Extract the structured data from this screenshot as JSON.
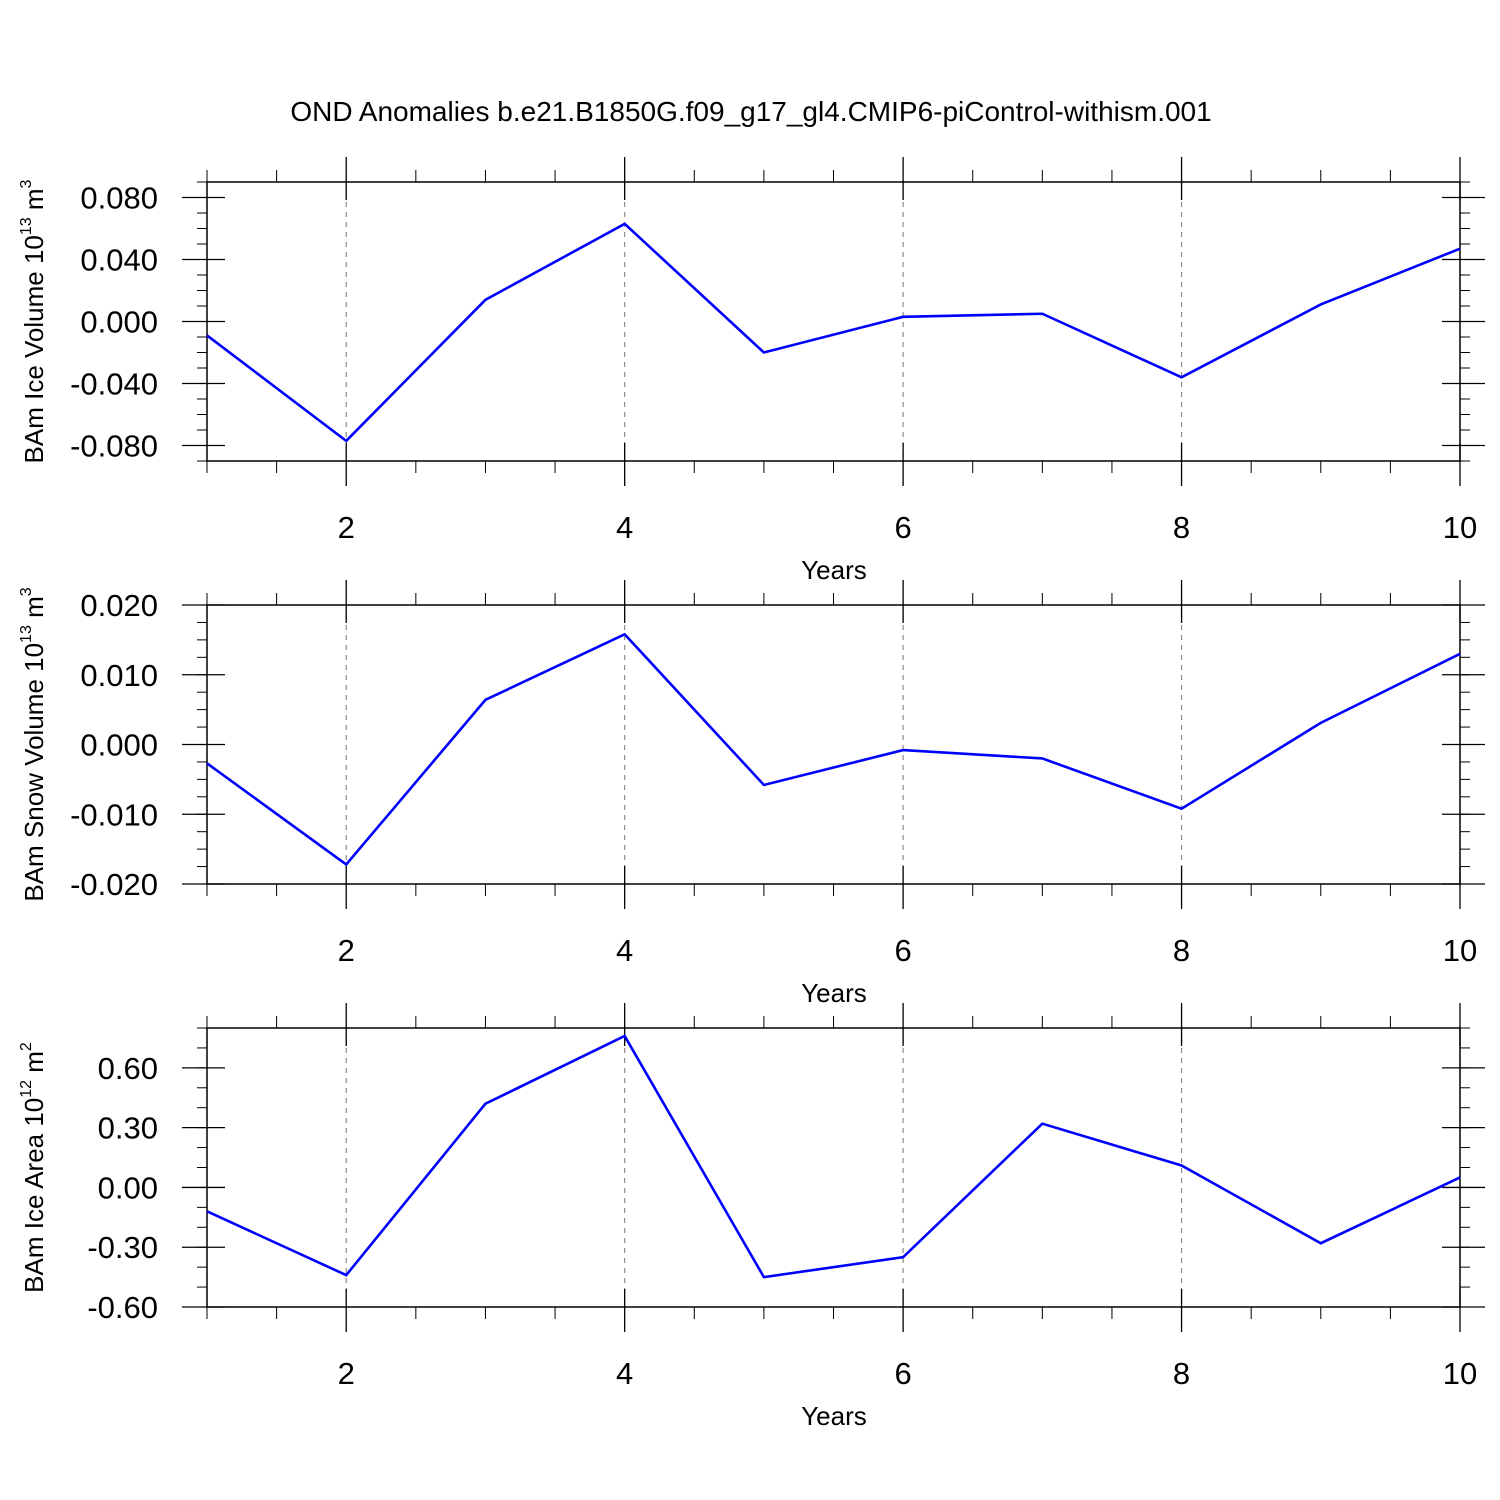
{
  "title": "OND Anomalies b.e21.B1850G.f09_g17_gl4.CMIP6-piControl-withism.001",
  "colors": {
    "line": "#0000ff",
    "axes": "#000000",
    "grid": "#8c8c8c"
  },
  "chart_data": [
    {
      "type": "line",
      "ylabel": {
        "text": "BAm Ice Volume 10",
        "sup": "13",
        "unit": " m",
        "unit_sup": "3"
      },
      "xlabel": "Years",
      "x": [
        1,
        2,
        3,
        4,
        5,
        6,
        7,
        8,
        9,
        10
      ],
      "xlim": [
        1,
        10
      ],
      "xticks": [
        2,
        4,
        6,
        8,
        10
      ],
      "xtick_labels": [
        "2",
        "4",
        "6",
        "8",
        "10"
      ],
      "series": [
        {
          "values": [
            -0.009,
            -0.077,
            0.014,
            0.063,
            -0.02,
            0.003,
            0.005,
            -0.036,
            0.011,
            0.047
          ]
        }
      ],
      "ylim": [
        -0.09,
        0.09
      ],
      "yticks": [
        -0.08,
        -0.04,
        0.0,
        0.04,
        0.08
      ],
      "ytick_labels": [
        "-0.080",
        "-0.040",
        "0.000",
        "0.040",
        "0.080"
      ],
      "yminor_step": 0.01,
      "grid": "vertical dashed at major x ticks"
    },
    {
      "type": "line",
      "ylabel": {
        "text": "BAm Snow Volume 10",
        "sup": "13",
        "unit": " m",
        "unit_sup": "3"
      },
      "xlabel": "Years",
      "x": [
        1,
        2,
        3,
        4,
        5,
        6,
        7,
        8,
        9,
        10
      ],
      "xlim": [
        1,
        10
      ],
      "xticks": [
        2,
        4,
        6,
        8,
        10
      ],
      "xtick_labels": [
        "2",
        "4",
        "6",
        "8",
        "10"
      ],
      "series": [
        {
          "values": [
            -0.0027,
            -0.0172,
            0.0064,
            0.0158,
            -0.0058,
            -0.0008,
            -0.002,
            -0.0092,
            0.0031,
            0.013
          ]
        }
      ],
      "ylim": [
        -0.02,
        0.02
      ],
      "yticks": [
        -0.02,
        -0.01,
        0.0,
        0.01,
        0.02
      ],
      "ytick_labels": [
        "-0.020",
        "-0.010",
        "0.000",
        "0.010",
        "0.020"
      ],
      "yminor_step": 0.0025,
      "grid": "vertical dashed at major x ticks"
    },
    {
      "type": "line",
      "ylabel": {
        "text": "BAm Ice Area 10",
        "sup": "12",
        "unit": " m",
        "unit_sup": "2"
      },
      "xlabel": "Years",
      "x": [
        1,
        2,
        3,
        4,
        5,
        6,
        7,
        8,
        9,
        10
      ],
      "xlim": [
        1,
        10
      ],
      "xticks": [
        2,
        4,
        6,
        8,
        10
      ],
      "xtick_labels": [
        "2",
        "4",
        "6",
        "8",
        "10"
      ],
      "series": [
        {
          "values": [
            -0.12,
            -0.44,
            0.42,
            0.76,
            -0.45,
            -0.35,
            0.32,
            0.11,
            -0.28,
            0.05
          ]
        }
      ],
      "ylim": [
        -0.6,
        0.8
      ],
      "yticks": [
        -0.6,
        -0.3,
        0.0,
        0.3,
        0.6
      ],
      "ytick_labels": [
        "-0.60",
        "-0.30",
        "0.00",
        "0.30",
        "0.60"
      ],
      "yminor_step": 0.1,
      "grid": "vertical dashed at major x ticks"
    }
  ]
}
